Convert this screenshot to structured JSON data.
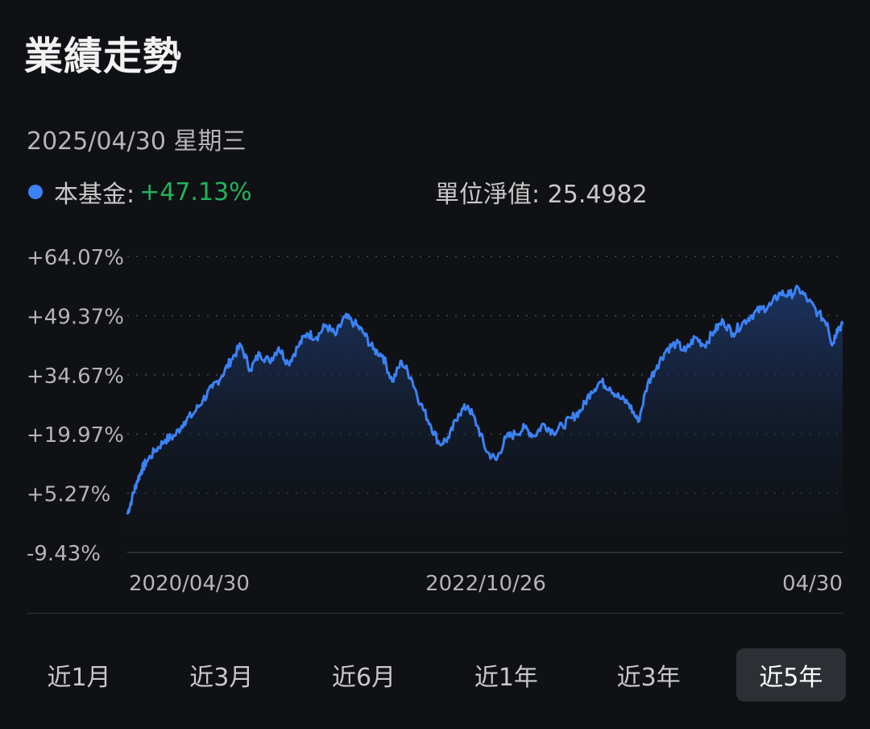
{
  "header": {
    "title": "業績走勢",
    "date": "2025/04/30 星期三"
  },
  "legend": {
    "label": "本基金:",
    "value": "+47.13%",
    "nav_text": "單位淨值: 25.4982"
  },
  "colors": {
    "line": "#3b82f6",
    "positive": "#22b35e",
    "background": "#0f1114"
  },
  "chart_data": {
    "type": "area",
    "y_tick_labels": [
      "+64.07%",
      "+49.37%",
      "+34.67%",
      "+19.97%",
      "+5.27%",
      "-9.43%"
    ],
    "y_ticks": [
      64.07,
      49.37,
      34.67,
      19.97,
      5.27,
      -9.43
    ],
    "ylim": [
      -9.43,
      64.07
    ],
    "x_tick_labels": [
      "2020/04/30",
      "2022/10/26",
      "04/30"
    ],
    "grid": "dotted horizontal",
    "series": [
      {
        "values": [
          [
            0.0,
            0.0
          ],
          [
            0.5,
            4.0
          ],
          [
            1.0,
            8.0
          ],
          [
            1.5,
            11.0
          ],
          [
            2.0,
            13.0
          ],
          [
            3.0,
            16.0
          ],
          [
            4.0,
            18.5
          ],
          [
            5.0,
            19.5
          ],
          [
            6.0,
            23.0
          ],
          [
            7.0,
            25.0
          ],
          [
            8.0,
            28.5
          ],
          [
            9.0,
            31.5
          ],
          [
            10.0,
            34.5
          ],
          [
            11.0,
            38.5
          ],
          [
            12.0,
            42.0
          ],
          [
            13.0,
            36.0
          ],
          [
            14.0,
            40.0
          ],
          [
            15.0,
            38.0
          ],
          [
            16.0,
            41.5
          ],
          [
            17.0,
            37.5
          ],
          [
            18.0,
            41.5
          ],
          [
            19.0,
            45.0
          ],
          [
            20.0,
            44.0
          ],
          [
            21.0,
            47.0
          ],
          [
            22.0,
            44.5
          ],
          [
            23.0,
            49.0
          ],
          [
            24.0,
            47.5
          ],
          [
            25.0,
            45.0
          ],
          [
            26.0,
            41.0
          ],
          [
            27.0,
            39.5
          ],
          [
            28.0,
            33.0
          ],
          [
            29.0,
            38.0
          ],
          [
            30.0,
            34.0
          ],
          [
            31.0,
            27.5
          ],
          [
            32.0,
            22.5
          ],
          [
            33.0,
            17.5
          ],
          [
            34.0,
            19.0
          ],
          [
            35.0,
            25.0
          ],
          [
            36.0,
            27.0
          ],
          [
            37.0,
            22.0
          ],
          [
            38.0,
            15.5
          ],
          [
            39.0,
            13.5
          ],
          [
            40.0,
            19.0
          ],
          [
            41.0,
            20.0
          ],
          [
            42.0,
            21.5
          ],
          [
            43.0,
            19.5
          ],
          [
            44.0,
            22.5
          ],
          [
            45.0,
            20.5
          ],
          [
            46.0,
            22.0
          ],
          [
            47.0,
            24.0
          ],
          [
            48.0,
            26.0
          ],
          [
            49.0,
            30.5
          ],
          [
            50.0,
            33.0
          ],
          [
            51.0,
            31.5
          ],
          [
            52.0,
            29.0
          ],
          [
            53.0,
            27.5
          ],
          [
            54.0,
            23.0
          ],
          [
            55.0,
            32.5
          ],
          [
            56.0,
            37.0
          ],
          [
            57.0,
            41.0
          ],
          [
            58.0,
            42.5
          ],
          [
            59.0,
            40.5
          ],
          [
            60.0,
            44.0
          ],
          [
            61.0,
            42.0
          ],
          [
            62.0,
            45.5
          ],
          [
            63.0,
            48.0
          ],
          [
            64.0,
            45.0
          ],
          [
            65.0,
            47.5
          ],
          [
            66.0,
            49.5
          ],
          [
            67.0,
            51.0
          ],
          [
            68.0,
            52.0
          ],
          [
            69.0,
            55.0
          ],
          [
            70.0,
            54.5
          ],
          [
            71.0,
            56.0
          ],
          [
            72.0,
            53.0
          ],
          [
            73.0,
            50.0
          ],
          [
            74.0,
            47.5
          ],
          [
            74.5,
            42.0
          ],
          [
            75.0,
            46.0
          ],
          [
            75.6,
            47.13
          ]
        ]
      }
    ]
  },
  "tabs": [
    {
      "label": "近1月",
      "active": false
    },
    {
      "label": "近3月",
      "active": false
    },
    {
      "label": "近6月",
      "active": false
    },
    {
      "label": "近1年",
      "active": false
    },
    {
      "label": "近3年",
      "active": false
    },
    {
      "label": "近5年",
      "active": true
    }
  ]
}
